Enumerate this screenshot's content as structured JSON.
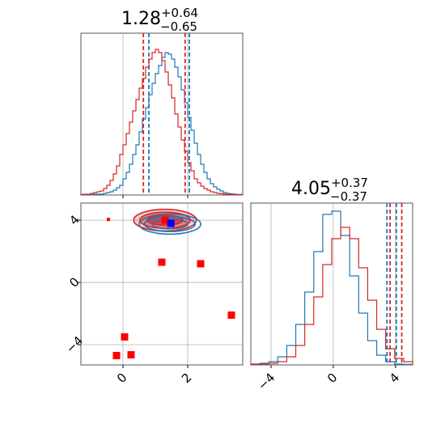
{
  "chart_data": [
    {
      "type": "histogram",
      "panel": "x marginal",
      "title": {
        "value": "1.28",
        "sup": "+0.64",
        "sub": "−0.65"
      },
      "xlim": [
        -1.3,
        3.7
      ],
      "grid": true,
      "series": [
        {
          "name": "",
          "color": "#1f77b4",
          "quantiles": [
            0.8,
            2.05
          ],
          "hist": [
            0.003,
            0.003,
            0.003,
            0.003,
            0.005,
            0.005,
            0.005,
            0.01,
            0.015,
            0.02,
            0.03,
            0.045,
            0.06,
            0.1,
            0.14,
            0.19,
            0.25,
            0.31,
            0.39,
            0.47,
            0.54,
            0.62,
            0.69,
            0.75,
            0.8,
            0.85,
            0.88,
            0.87,
            0.84,
            0.79,
            0.73,
            0.65,
            0.57,
            0.48,
            0.4,
            0.32,
            0.25,
            0.19,
            0.14,
            0.1,
            0.07,
            0.05,
            0.035,
            0.025,
            0.015,
            0.01,
            0.007,
            0.005,
            0.003,
            0.003
          ]
        },
        {
          "name": "",
          "color": "#d62728",
          "quantiles": [
            0.63,
            1.92
          ],
          "hist": [
            0.003,
            0.005,
            0.005,
            0.01,
            0.015,
            0.02,
            0.025,
            0.04,
            0.06,
            0.09,
            0.13,
            0.18,
            0.25,
            0.31,
            0.38,
            0.45,
            0.52,
            0.59,
            0.66,
            0.72,
            0.79,
            0.84,
            0.88,
            0.9,
            0.88,
            0.83,
            0.76,
            0.68,
            0.6,
            0.5,
            0.42,
            0.34,
            0.27,
            0.2,
            0.15,
            0.1,
            0.075,
            0.055,
            0.04,
            0.03,
            0.02,
            0.015,
            0.01,
            0.008,
            0.005,
            0.004,
            0.003,
            0.003,
            0.002,
            0.002
          ]
        }
      ]
    },
    {
      "type": "scatter",
      "panel": "2-D joint (x vs y)",
      "xlim": [
        -1.3,
        3.7
      ],
      "ylim": [
        -5.3,
        5.1
      ],
      "xticks": [
        0,
        2
      ],
      "yticks": [
        -4,
        0,
        4
      ],
      "grid": true,
      "contours": [
        {
          "color": "#d62728",
          "center": [
            1.3,
            4.0
          ],
          "radii": [
            [
              0.55,
              0.32
            ],
            [
              0.78,
              0.52
            ],
            [
              0.97,
              0.7
            ]
          ]
        },
        {
          "color": "#1f77b4",
          "center": [
            1.45,
            3.75
          ],
          "radii": [
            [
              0.55,
              0.3
            ],
            [
              0.78,
              0.48
            ],
            [
              0.95,
              0.65
            ]
          ]
        }
      ],
      "series": [
        {
          "name": "",
          "color": "#ff0000",
          "marker": "square",
          "points": [
            [
              1.3,
              4.0
            ],
            [
              1.2,
              1.3
            ],
            [
              2.4,
              1.2
            ],
            [
              3.35,
              -2.1
            ],
            [
              0.05,
              -3.5
            ],
            [
              -0.2,
              -4.7
            ],
            [
              0.25,
              -4.65
            ],
            [
              -0.45,
              4.05
            ]
          ]
        },
        {
          "name": "",
          "color": "#0000ff",
          "marker": "square",
          "points": [
            [
              1.48,
              3.8
            ]
          ]
        }
      ]
    },
    {
      "type": "histogram",
      "panel": "y marginal",
      "title": {
        "value": "4.05",
        "sup": "+0.37",
        "sub": "−0.37"
      },
      "xlim": [
        -5.3,
        5.1
      ],
      "xticks": [
        -4,
        0,
        4
      ],
      "grid": true,
      "series": [
        {
          "name": "",
          "color": "#1f77b4",
          "quantiles": [
            3.45,
            4.05
          ],
          "hist": [
            0.005,
            0.01,
            0.02,
            0.05,
            0.12,
            0.25,
            0.45,
            0.7,
            0.93,
            0.95,
            0.8,
            0.55,
            0.32,
            0.15,
            0.06,
            0.02,
            0.005,
            0.003
          ]
        },
        {
          "name": "",
          "color": "#d62728",
          "quantiles": [
            3.65,
            4.4
          ],
          "hist": [
            0.005,
            0.005,
            0.01,
            0.02,
            0.05,
            0.12,
            0.25,
            0.42,
            0.62,
            0.78,
            0.85,
            0.78,
            0.6,
            0.4,
            0.22,
            0.1,
            0.04,
            0.02
          ]
        }
      ]
    }
  ]
}
